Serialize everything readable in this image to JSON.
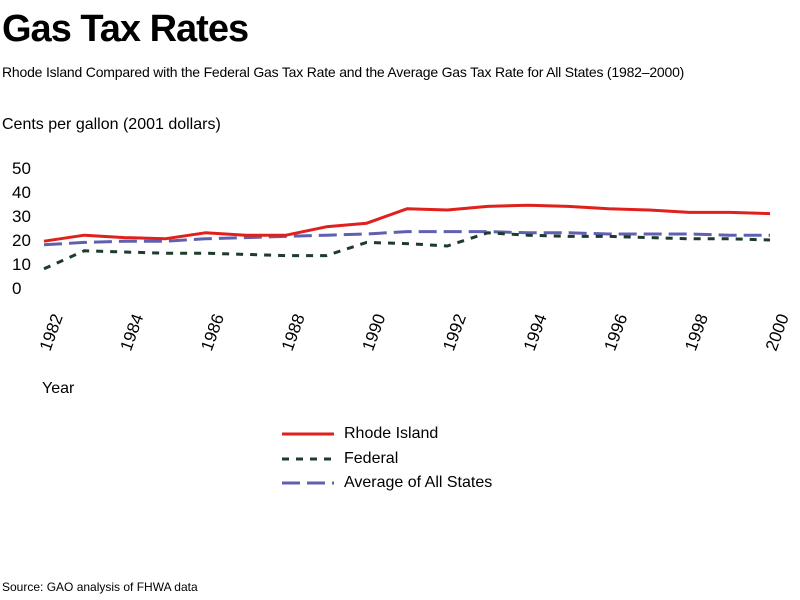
{
  "title": "Gas Tax Rates",
  "subtitle": "Rhode Island Compared with the Federal Gas Tax Rate and the Average Gas Tax Rate for All States (1982–2000)",
  "source": "Source: GAO analysis of FHWA data",
  "chart_data": {
    "type": "line",
    "ylabel": "Cents per gallon (2001 dollars)",
    "xlabel": "Year",
    "ylim": [
      0,
      50
    ],
    "yticks": [
      0,
      10,
      20,
      30,
      40,
      50
    ],
    "xlim": [
      1982,
      2000
    ],
    "xticks": [
      1982,
      1984,
      1986,
      1988,
      1990,
      1992,
      1994,
      1996,
      1998,
      2000
    ],
    "grid": false,
    "legend_position": "bottom",
    "x": [
      1982,
      1983,
      1984,
      1985,
      1986,
      1987,
      1988,
      1989,
      1990,
      1991,
      1992,
      1993,
      1994,
      1995,
      1996,
      1997,
      1998,
      1999,
      2000
    ],
    "series": [
      {
        "name": "Rhode Island",
        "color": "#e0201c",
        "dash": "solid",
        "values": [
          19.5,
          22,
          21,
          20.5,
          23,
          22,
          22,
          25.5,
          27,
          33,
          32.5,
          34,
          34.5,
          34,
          33,
          32.5,
          31.5,
          31.5,
          31
        ]
      },
      {
        "name": "Federal",
        "color": "#1e3b2d",
        "dash": "short",
        "values": [
          8,
          15.5,
          15,
          14.5,
          14.5,
          14,
          13.5,
          13.5,
          19,
          18.5,
          17.5,
          23,
          22,
          21.5,
          21.5,
          21,
          20.5,
          20.5,
          20
        ]
      },
      {
        "name": "Average of All States",
        "color": "#6060b0",
        "dash": "long",
        "values": [
          18,
          19,
          19.5,
          19.5,
          20.5,
          21,
          21.5,
          22,
          22.5,
          23.5,
          23.5,
          23.5,
          23,
          23,
          22.5,
          22.5,
          22.5,
          22,
          22
        ]
      }
    ]
  }
}
